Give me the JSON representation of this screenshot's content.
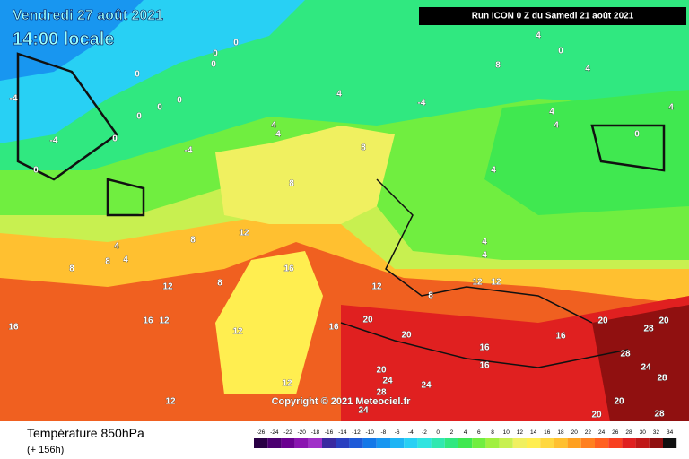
{
  "header": {
    "title": "Vendredi 27 août 2021",
    "time": "14:00 locale",
    "run": "Run ICON 0 Z du Samedi 21 août 2021"
  },
  "copyright": "Copyright © 2021 Meteociel.fr",
  "footer": {
    "parameter": "Température 850hPa",
    "lead": "(+ 156h)"
  },
  "legend": {
    "ticks": [
      -26,
      -24,
      -22,
      -20,
      -18,
      -16,
      -14,
      -12,
      -10,
      -8,
      -6,
      -4,
      -2,
      0,
      2,
      4,
      6,
      8,
      10,
      12,
      14,
      16,
      18,
      20,
      22,
      24,
      26,
      28,
      30,
      32,
      34
    ],
    "colors": [
      "#2a0045",
      "#4b0070",
      "#6a0090",
      "#8a14b0",
      "#a030c8",
      "#3a2aa0",
      "#2a40c0",
      "#1e5ad8",
      "#1478e8",
      "#1896f0",
      "#1eb4f4",
      "#28d0f4",
      "#30e4e0",
      "#30e8b0",
      "#30e880",
      "#40e850",
      "#70ee40",
      "#a0f040",
      "#c8f050",
      "#f0f060",
      "#ffee50",
      "#ffd840",
      "#ffc030",
      "#ffa020",
      "#ff8020",
      "#ff6020",
      "#f84020",
      "#e02020",
      "#c01818",
      "#901010",
      "#101010"
    ]
  },
  "contour_labels": [
    0,
    0,
    0,
    0,
    0,
    0,
    0,
    0,
    0,
    0,
    0,
    -4,
    -4,
    -4,
    -4,
    4,
    4,
    4,
    4,
    4,
    4,
    4,
    4,
    4,
    4,
    4,
    4,
    4,
    8,
    8,
    8,
    8,
    8,
    8,
    8,
    8,
    12,
    12,
    12,
    12,
    12,
    12,
    12,
    12,
    12,
    16,
    16,
    16,
    16,
    16,
    16,
    16,
    20,
    20,
    20,
    20,
    20,
    20,
    20,
    24,
    24,
    24,
    24,
    28,
    28,
    28,
    28,
    28
  ]
}
